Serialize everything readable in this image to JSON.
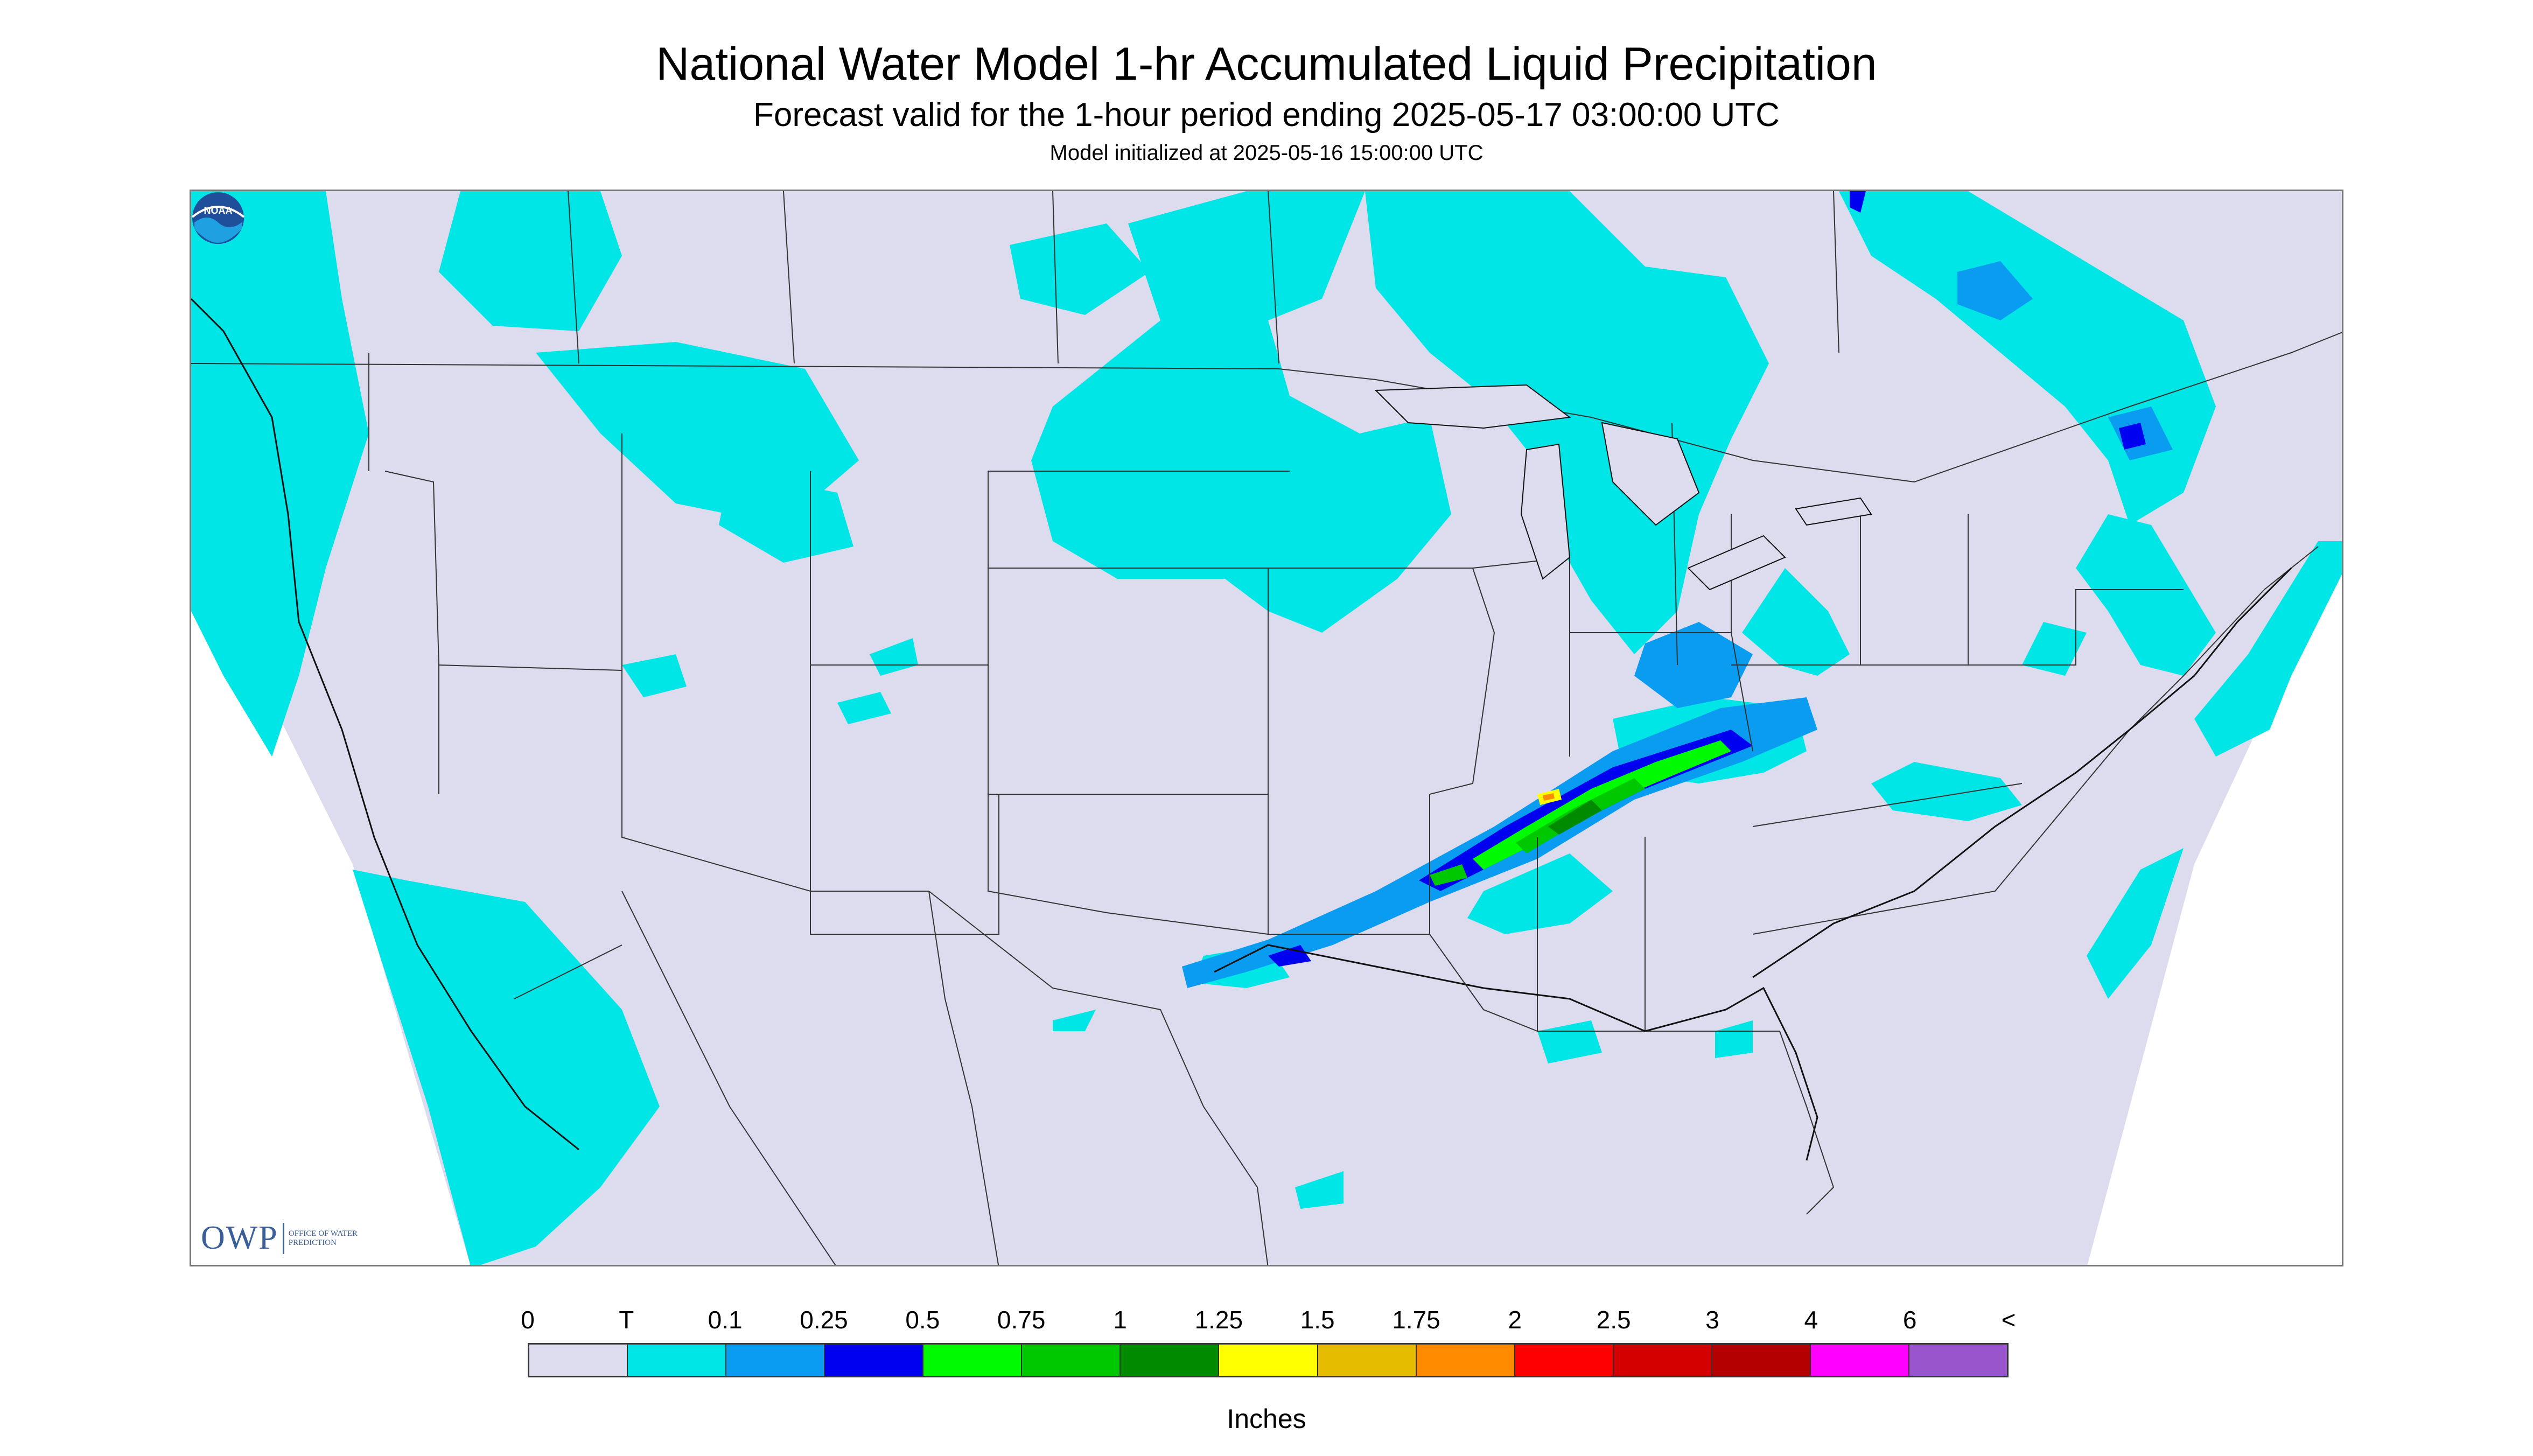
{
  "header": {
    "title": "National Water Model 1-hr Accumulated Liquid Precipitation",
    "subtitle": "Forecast valid for the 1-hour period ending 2025-05-17 03:00:00 UTC",
    "init": "Model initialized at 2025-05-16 15:00:00 UTC"
  },
  "legend": {
    "labels": [
      "0",
      "T",
      "0.1",
      "0.25",
      "0.5",
      "0.75",
      "1",
      "1.25",
      "1.5",
      "1.75",
      "2",
      "2.5",
      "3",
      "4",
      "6",
      "<"
    ],
    "colors": [
      "#dcdcee",
      "#00e5e5",
      "#0a9cf0",
      "#0000f0",
      "#00fa00",
      "#00c800",
      "#008a00",
      "#ffff00",
      "#e6bc00",
      "#ff8c00",
      "#ff0000",
      "#d40000",
      "#b40000",
      "#ff00ff",
      "#9955cc"
    ],
    "units": "Inches"
  },
  "logos": {
    "owp_main": "OWP",
    "owp_sub": "OFFICE OF WATER PREDICTION",
    "noaa": "NOAA"
  },
  "colors": {
    "no_precip": "#dcdcee",
    "trace": "#00e5e5",
    "boundary": "#333333"
  }
}
